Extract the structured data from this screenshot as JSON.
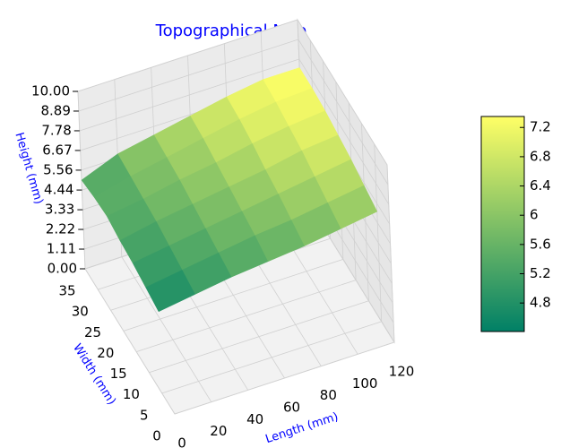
{
  "chart_data": {
    "type": "surface",
    "title": "Topographical Map",
    "xlabel": "Length (mm)",
    "ylabel": "Width (mm)",
    "zlabel": "Height (mm)",
    "x": [
      0,
      20,
      40,
      60,
      80,
      100,
      120
    ],
    "y": [
      5,
      10,
      15,
      20,
      25,
      30,
      35
    ],
    "z": [
      [
        4.6,
        4.9,
        5.2,
        5.4,
        5.6,
        5.9,
        6.2
      ],
      [
        4.8,
        5.1,
        5.4,
        5.7,
        5.9,
        6.2,
        6.5
      ],
      [
        5.0,
        5.3,
        5.6,
        5.9,
        6.2,
        6.5,
        6.8
      ],
      [
        5.1,
        5.5,
        5.8,
        6.1,
        6.4,
        6.8,
        7.0
      ],
      [
        5.3,
        5.6,
        6.0,
        6.3,
        6.7,
        7.0,
        7.2
      ],
      [
        5.2,
        5.7,
        6.1,
        6.5,
        6.9,
        7.2,
        7.3
      ],
      [
        5.0,
        5.8,
        6.2,
        6.6,
        7.0,
        7.3,
        7.3
      ]
    ],
    "xlim": [
      0,
      120
    ],
    "xticks": [
      0,
      20,
      40,
      60,
      80,
      100,
      120
    ],
    "ylim": [
      0,
      35
    ],
    "yticks": [
      0,
      5,
      10,
      15,
      20,
      25,
      30,
      35
    ],
    "zlim": [
      0,
      10
    ],
    "zticks": [
      {
        "value": 0,
        "label": "0.00"
      },
      {
        "value": 1.11,
        "label": "1.11"
      },
      {
        "value": 2.22,
        "label": "2.22"
      },
      {
        "value": 3.33,
        "label": "3.33"
      },
      {
        "value": 4.44,
        "label": "4.44"
      },
      {
        "value": 5.56,
        "label": "5.56"
      },
      {
        "value": 6.67,
        "label": "6.67"
      },
      {
        "value": 7.78,
        "label": "7.78"
      },
      {
        "value": 8.89,
        "label": "8.89"
      },
      {
        "value": 10,
        "label": "10.00"
      }
    ],
    "colormap": [
      "#008066",
      "#ffff66"
    ],
    "clim": [
      4.41,
      7.35
    ],
    "cticks": [
      4.8,
      5.2,
      5.6,
      6.0,
      6.4,
      6.8,
      7.2
    ],
    "grid": true
  }
}
